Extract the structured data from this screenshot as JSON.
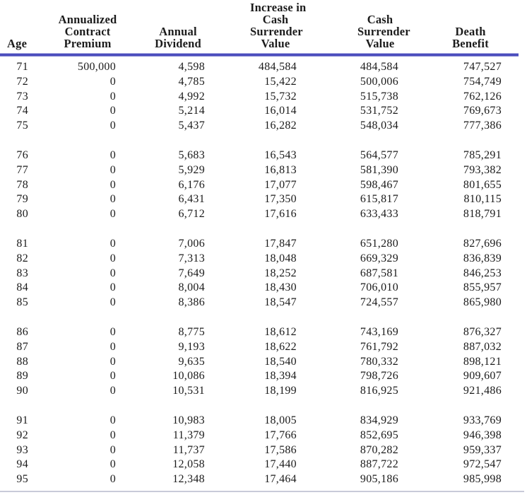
{
  "colors": {
    "text": "#1b1b1b",
    "background": "#ffffff",
    "header_rule_dark": "#4b4dbd",
    "header_rule_light": "#a7a9e0",
    "header_rule_mid": "#8a8cd4",
    "bottom_rule": "#c9cad9"
  },
  "table": {
    "headers": [
      {
        "id": "age",
        "label": "Age"
      },
      {
        "id": "premium",
        "label": "Annualized\nContract\nPremium"
      },
      {
        "id": "dividend",
        "label": "Annual\nDividend"
      },
      {
        "id": "increase",
        "label": "Increase in\nCash\nSurrender\nValue"
      },
      {
        "id": "csv",
        "label": "Cash\nSurrender\nValue"
      },
      {
        "id": "death",
        "label": "Death\nBenefit"
      }
    ],
    "groups": [
      {
        "rows": [
          [
            "71",
            "500,000",
            "4,598",
            "484,584",
            "484,584",
            "747,527"
          ],
          [
            "72",
            "0",
            "4,785",
            "15,422",
            "500,006",
            "754,749"
          ],
          [
            "73",
            "0",
            "4,992",
            "15,732",
            "515,738",
            "762,126"
          ],
          [
            "74",
            "0",
            "5,214",
            "16,014",
            "531,752",
            "769,673"
          ],
          [
            "75",
            "0",
            "5,437",
            "16,282",
            "548,034",
            "777,386"
          ]
        ]
      },
      {
        "rows": [
          [
            "76",
            "0",
            "5,683",
            "16,543",
            "564,577",
            "785,291"
          ],
          [
            "77",
            "0",
            "5,929",
            "16,813",
            "581,390",
            "793,382"
          ],
          [
            "78",
            "0",
            "6,176",
            "17,077",
            "598,467",
            "801,655"
          ],
          [
            "79",
            "0",
            "6,431",
            "17,350",
            "615,817",
            "810,115"
          ],
          [
            "80",
            "0",
            "6,712",
            "17,616",
            "633,433",
            "818,791"
          ]
        ]
      },
      {
        "rows": [
          [
            "81",
            "0",
            "7,006",
            "17,847",
            "651,280",
            "827,696"
          ],
          [
            "82",
            "0",
            "7,313",
            "18,048",
            "669,329",
            "836,839"
          ],
          [
            "83",
            "0",
            "7,649",
            "18,252",
            "687,581",
            "846,253"
          ],
          [
            "84",
            "0",
            "8,004",
            "18,430",
            "706,010",
            "855,957"
          ],
          [
            "85",
            "0",
            "8,386",
            "18,547",
            "724,557",
            "865,980"
          ]
        ]
      },
      {
        "rows": [
          [
            "86",
            "0",
            "8,775",
            "18,612",
            "743,169",
            "876,327"
          ],
          [
            "87",
            "0",
            "9,193",
            "18,622",
            "761,792",
            "887,032"
          ],
          [
            "88",
            "0",
            "9,635",
            "18,540",
            "780,332",
            "898,121"
          ],
          [
            "89",
            "0",
            "10,086",
            "18,394",
            "798,726",
            "909,607"
          ],
          [
            "90",
            "0",
            "10,531",
            "18,199",
            "816,925",
            "921,486"
          ]
        ]
      },
      {
        "rows": [
          [
            "91",
            "0",
            "10,983",
            "18,005",
            "834,929",
            "933,769"
          ],
          [
            "92",
            "0",
            "11,379",
            "17,766",
            "852,695",
            "946,398"
          ],
          [
            "93",
            "0",
            "11,737",
            "17,586",
            "870,282",
            "959,337"
          ],
          [
            "94",
            "0",
            "12,058",
            "17,440",
            "887,722",
            "972,547"
          ],
          [
            "95",
            "0",
            "12,348",
            "17,464",
            "905,186",
            "985,998"
          ]
        ]
      }
    ]
  }
}
